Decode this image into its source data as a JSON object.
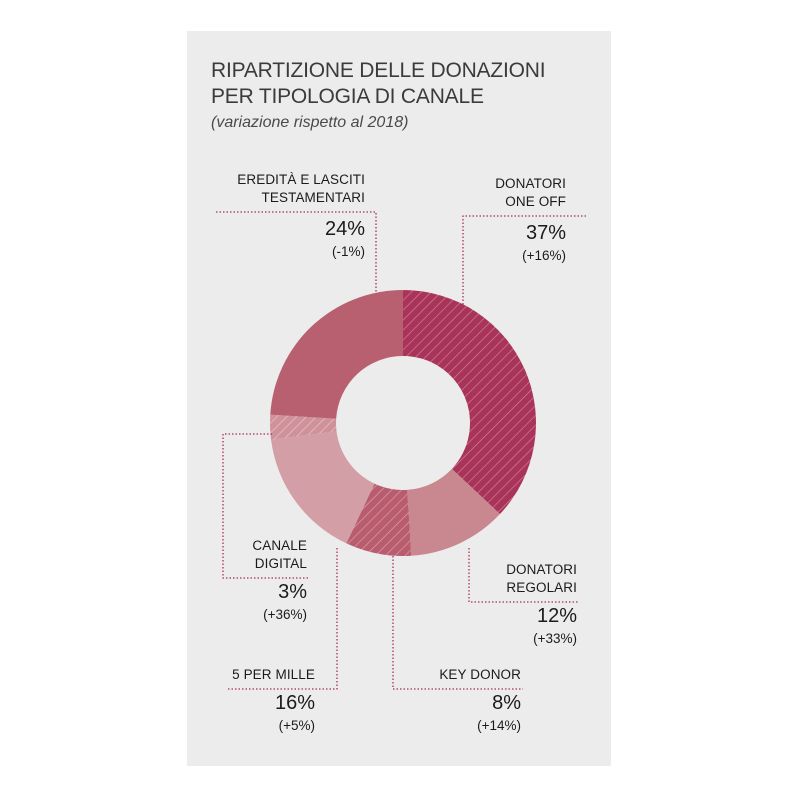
{
  "header": {
    "title_line1": "RIPARTIZIONE DELLE DONAZIONI",
    "title_line2": "PER TIPOLOGIA DI CANALE",
    "subtitle": "(variazione rispetto al 2018)"
  },
  "colors": {
    "background": "#ececec",
    "leader_line": "#a8304f",
    "donatori_one_off": "#a8345a",
    "donatori_regolari": "#c9878f",
    "key_donor": "#b85c6e",
    "cinque_per_mille": "#d49ea6",
    "canale_digital": "#d49ea6",
    "eredita": "#b86070"
  },
  "labels": {
    "eredita": {
      "name_line1": "EREDITÀ E LASCITI",
      "name_line2": "TESTAMENTARI",
      "pct": "24%",
      "change": "(-1%)"
    },
    "one_off": {
      "name_line1": "DONATORI",
      "name_line2": "ONE OFF",
      "pct": "37%",
      "change": "(+16%)"
    },
    "digital": {
      "name_line1": "CANALE",
      "name_line2": "DIGITAL",
      "pct": "3%",
      "change": "(+36%)"
    },
    "regolari": {
      "name_line1": "DONATORI",
      "name_line2": "REGOLARI",
      "pct": "12%",
      "change": "(+33%)"
    },
    "per_mille": {
      "name_line1": "5 PER MILLE",
      "pct": "16%",
      "change": "(+5%)"
    },
    "key_donor": {
      "name_line1": "KEY DONOR",
      "pct": "8%",
      "change": "(+14%)"
    }
  },
  "chart_data": {
    "type": "pie",
    "subtype": "donut",
    "title": "RIPARTIZIONE DELLE DONAZIONI PER TIPOLOGIA DI CANALE",
    "subtitle": "(variazione rispetto al 2018)",
    "categories": [
      "Donatori One Off",
      "Donatori Regolari",
      "Key Donor",
      "5 per mille",
      "Canale Digital",
      "Eredità e lasciti testamentari"
    ],
    "values": [
      37,
      12,
      8,
      16,
      3,
      24
    ],
    "change_vs_2018": [
      "+16%",
      "+33%",
      "+14%",
      "+5%",
      "+36%",
      "-1%"
    ],
    "hatched": [
      true,
      false,
      true,
      false,
      true,
      false
    ],
    "colors": [
      "#a8345a",
      "#c9878f",
      "#b85c6e",
      "#d49ea6",
      "#d49ea6",
      "#b86070"
    ],
    "start_angle": "12 o'clock",
    "direction": "clockwise",
    "legend": "none (callout labels)"
  }
}
